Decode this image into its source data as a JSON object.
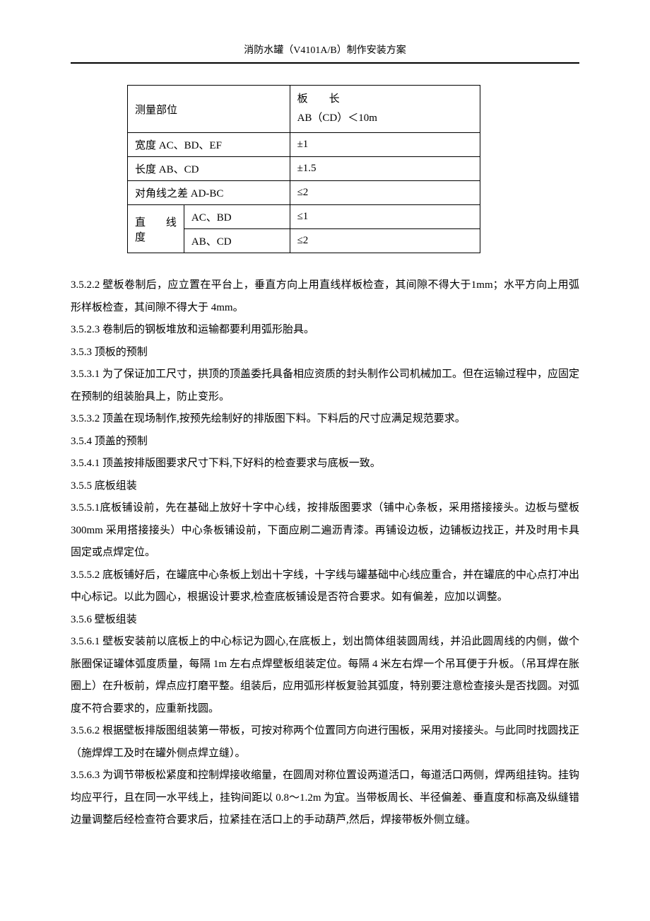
{
  "header": {
    "title": "消防水罐（V4101A/B）制作安装方案"
  },
  "table": {
    "rows": [
      {
        "label": "测量部位",
        "value": "板　　长\nAB（CD）＜10m",
        "multi": true
      },
      {
        "label": "宽度 AC、BD、EF",
        "value": "±1"
      },
      {
        "label": "长度 AB、CD",
        "value": "±1.5"
      },
      {
        "label": "对角线之差 AD-BC",
        "value": "≤2"
      },
      {
        "split": true,
        "leftTop": "直 线",
        "leftBottom": "度",
        "rightTop": "AC、BD",
        "rightBottom": "AB、CD",
        "valueTop": "≤1",
        "valueBottom": "≤2"
      }
    ]
  },
  "paragraphs": [
    "3.5.2.2 壁板卷制后，应立置在平台上，垂直方向上用直线样板检查，其间隙不得大于1mm；水平方向上用弧形样板检查，其间隙不得大于 4mm。",
    "3.5.2.3 卷制后的钢板堆放和运输都要利用弧形胎具。",
    "3.5.3 顶板的预制",
    "3.5.3.1 为了保证加工尺寸，拱顶的顶盖委托具备相应资质的封头制作公司机械加工。但在运输过程中，应固定在预制的组装胎具上，防止变形。",
    "3.5.3.2 顶盖在现场制作,按预先绘制好的排版图下料。下料后的尺寸应满足规范要求。",
    "3.5.4 顶盖的预制",
    "3.5.4.1 顶盖按排版图要求尺寸下料,下好料的检查要求与底板一致。",
    "3.5.5 底板组装",
    "3.5.5.1底板铺设前，先在基础上放好十字中心线，按排版图要求（铺中心条板，采用搭接接头。边板与壁板 300mm 采用搭接接头）中心条板铺设前，下面应刷二遍沥青漆。再铺设边板，边铺板边找正，并及时用卡具固定或点焊定位。",
    "3.5.5.2 底板铺好后，在罐底中心条板上划出十字线，十字线与罐基础中心线应重合，并在罐底的中心点打冲出中心标记。以此为圆心，根据设计要求,检查底板铺设是否符合要求。如有偏差，应加以调整。",
    "3.5.6 壁板组装",
    "3.5.6.1 壁板安装前以底板上的中心标记为圆心,在底板上，划出筒体组装圆周线，并沿此圆周线的内侧，做个胀圈保证罐体弧度质量，每隔 1m 左右点焊壁板组装定位。每隔 4 米左右焊一个吊耳便于升板。（吊耳焊在胀圈上）在升板前，焊点应打磨平整。组装后，应用弧形样板复验其弧度，特别要注意检查接头是否找圆。对弧度不符合要求的，应重新找圆。",
    "3.5.6.2 根据壁板排版图组装第一带板，可按对称两个位置同方向进行围板，采用对接接头。与此同时找圆找正（施焊焊工及时在罐外侧点焊立缝）。",
    "3.5.6.3 为调节带板松紧度和控制焊接收缩量，在圆周对称位置设两道活口，每道活口两侧，焊两组挂钩。挂钩均应平行，且在同一水平线上，挂钩间距以 0.8～1.2m 为宜。当带板周长、半径偏差、垂直度和标高及纵缝错边量调整后经检查符合要求后，拉紧挂在活口上的手动葫芦,然后，焊接带板外侧立缝。"
  ]
}
